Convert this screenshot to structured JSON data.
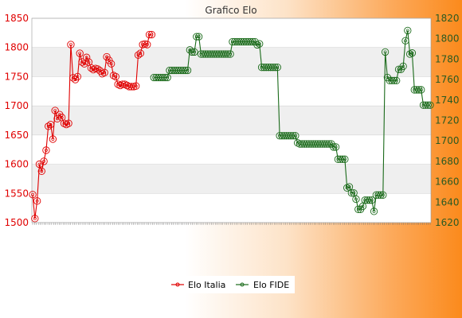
{
  "chart_data": {
    "type": "line",
    "title": "Grafico Elo",
    "y_left": {
      "min": 1500,
      "max": 1850,
      "ticks": [
        1500,
        1550,
        1600,
        1650,
        1700,
        1750,
        1800,
        1850
      ],
      "color": "#e00000"
    },
    "y_right": {
      "min": 1620,
      "max": 1820,
      "ticks": [
        1620,
        1640,
        1660,
        1680,
        1700,
        1720,
        1740,
        1760,
        1780,
        1800,
        1820
      ],
      "color": "#1a6a1a"
    },
    "grid": true,
    "legend_position": "bottom",
    "series": [
      {
        "name": "Elo Italia",
        "color": "#e00000",
        "axis": "left",
        "values": [
          1548,
          1507,
          1537,
          1600,
          1588,
          1605,
          1624,
          1665,
          1668,
          1643,
          1692,
          1678,
          1685,
          1680,
          1670,
          1668,
          1670,
          1805,
          1748,
          1745,
          1750,
          1790,
          1775,
          1772,
          1783,
          1775,
          1765,
          1762,
          1764,
          1763,
          1760,
          1755,
          1757,
          1784,
          1778,
          1772,
          1752,
          1750,
          1737,
          1735,
          1737,
          1737,
          1735,
          1733,
          1733,
          1733,
          1734,
          1787,
          1790,
          1805,
          1806,
          1805,
          1822,
          1822
        ]
      },
      {
        "name": "Elo FIDE",
        "color": "#1a6a1a",
        "axis": "right",
        "values": [
          null,
          null,
          null,
          null,
          null,
          null,
          null,
          null,
          null,
          null,
          null,
          null,
          null,
          null,
          null,
          null,
          null,
          null,
          null,
          null,
          null,
          null,
          null,
          null,
          null,
          null,
          null,
          null,
          null,
          null,
          null,
          null,
          null,
          null,
          null,
          null,
          null,
          null,
          null,
          null,
          null,
          null,
          null,
          null,
          null,
          null,
          null,
          null,
          null,
          null,
          null,
          null,
          null,
          null,
          1762,
          1762,
          1762,
          1762,
          1762,
          1762,
          1762,
          1769,
          1769,
          1769,
          1769,
          1769,
          1769,
          1769,
          1769,
          1769,
          1789,
          1787,
          1787,
          1802,
          1802,
          1785,
          1785,
          1785,
          1785,
          1785,
          1785,
          1785,
          1785,
          1785,
          1785,
          1785,
          1785,
          1785,
          1785,
          1797,
          1797,
          1797,
          1797,
          1797,
          1797,
          1797,
          1797,
          1797,
          1797,
          1797,
          1794,
          1795,
          1772,
          1772,
          1772,
          1772,
          1772,
          1772,
          1772,
          1772,
          1705,
          1705,
          1705,
          1705,
          1705,
          1705,
          1705,
          1705,
          1698,
          1697,
          1697,
          1697,
          1697,
          1697,
          1697,
          1697,
          1697,
          1697,
          1697,
          1697,
          1697,
          1697,
          1697,
          1697,
          1694,
          1694,
          1682,
          1682,
          1682,
          1682,
          1654,
          1655,
          1649,
          1649,
          1643,
          1633,
          1633,
          1636,
          1642,
          1642,
          1642,
          1642,
          1631,
          1647,
          1647,
          1647,
          1647,
          1787,
          1762,
          1759,
          1759,
          1759,
          1759,
          1770,
          1770,
          1773,
          1798,
          1808,
          1785,
          1786,
          1750,
          1750,
          1750,
          1750,
          1735,
          1735,
          1735,
          1735
        ]
      }
    ],
    "x_label_count": 210
  },
  "legend": {
    "italia_label": "Elo Italia",
    "fide_label": "Elo FIDE"
  }
}
